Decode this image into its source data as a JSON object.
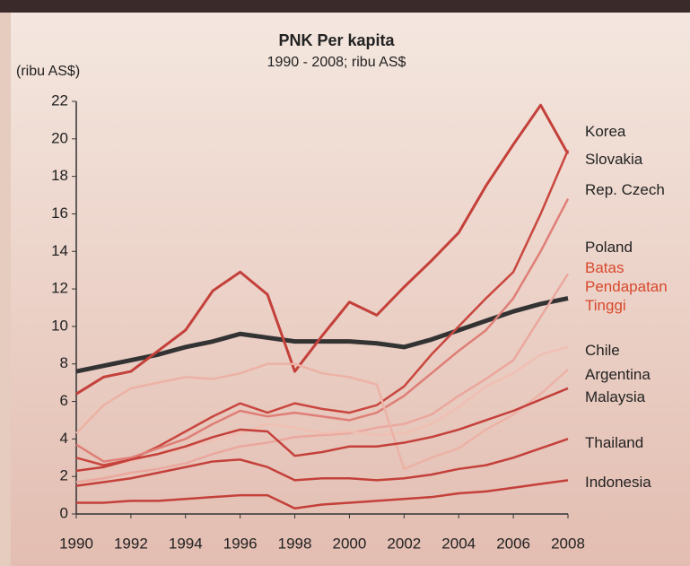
{
  "chart_data": {
    "type": "line",
    "title": "PNK Per kapita",
    "subtitle": "1990 - 2008; ribu AS$",
    "y_label": "(ribu AS$)",
    "x": [
      1990,
      1991,
      1992,
      1993,
      1994,
      1995,
      1996,
      1997,
      1998,
      1999,
      2000,
      2001,
      2002,
      2003,
      2004,
      2005,
      2006,
      2007,
      2008
    ],
    "xlim": [
      1990,
      2008
    ],
    "xticks": [
      1990,
      1992,
      1994,
      1996,
      1998,
      2000,
      2002,
      2004,
      2006,
      2008
    ],
    "ylim": [
      0,
      22
    ],
    "yticks": [
      0,
      2,
      4,
      6,
      8,
      10,
      12,
      14,
      16,
      18,
      20,
      22
    ],
    "grid": false,
    "series": [
      {
        "name": "Korea",
        "color": "#c4403a",
        "width": 3,
        "values": [
          6.4,
          7.3,
          7.6,
          8.7,
          9.8,
          11.9,
          12.9,
          11.7,
          7.6,
          9.5,
          11.3,
          10.6,
          12.1,
          13.5,
          15.0,
          17.5,
          19.7,
          21.8,
          19.2
        ]
      },
      {
        "name": "Slovakia",
        "color": "#c9473f",
        "width": 2.5,
        "values": [
          3.0,
          2.6,
          2.9,
          3.6,
          4.4,
          5.2,
          5.9,
          5.4,
          5.9,
          5.6,
          5.4,
          5.8,
          6.8,
          8.5,
          10.0,
          11.5,
          12.9,
          16.0,
          19.4
        ]
      },
      {
        "name": "Rep. Czech",
        "color": "#df7f77",
        "width": 2.5,
        "values": [
          3.7,
          2.8,
          3.0,
          3.5,
          4.0,
          4.8,
          5.5,
          5.2,
          5.4,
          5.2,
          5.0,
          5.4,
          6.3,
          7.5,
          8.7,
          9.8,
          11.5,
          14.0,
          16.8
        ]
      },
      {
        "name": "Poland",
        "color": "#eaa89e",
        "width": 2.5,
        "values": [
          1.7,
          1.9,
          2.2,
          2.4,
          2.7,
          3.2,
          3.6,
          3.8,
          4.1,
          4.2,
          4.3,
          4.6,
          4.8,
          5.3,
          6.3,
          7.2,
          8.2,
          10.5,
          12.8
        ]
      },
      {
        "name": "Batas Pendapatan Tinggi",
        "color": "#333333",
        "label_color": "#d8482c",
        "width": 5,
        "values": [
          7.6,
          7.9,
          8.2,
          8.5,
          8.9,
          9.2,
          9.6,
          9.4,
          9.2,
          9.2,
          9.2,
          9.1,
          8.9,
          9.3,
          9.8,
          10.3,
          10.8,
          11.2,
          11.5
        ]
      },
      {
        "name": "Chile",
        "color": "#f0bfb3",
        "width": 2.5,
        "values": [
          2.3,
          2.5,
          2.8,
          3.2,
          3.5,
          3.9,
          4.3,
          4.8,
          4.6,
          4.3,
          4.4,
          4.2,
          4.3,
          4.8,
          5.7,
          6.8,
          7.5,
          8.5,
          8.9
        ]
      },
      {
        "name": "Argentina",
        "color": "#ecb2a6",
        "width": 2.5,
        "values": [
          4.3,
          5.8,
          6.7,
          7.0,
          7.3,
          7.2,
          7.5,
          8.0,
          8.0,
          7.5,
          7.3,
          6.9,
          2.4,
          3.0,
          3.5,
          4.5,
          5.3,
          6.4,
          7.7
        ]
      },
      {
        "name": "Malaysia",
        "color": "#c4403a",
        "width": 2.5,
        "values": [
          2.3,
          2.5,
          2.9,
          3.2,
          3.6,
          4.1,
          4.5,
          4.4,
          3.1,
          3.3,
          3.6,
          3.6,
          3.8,
          4.1,
          4.5,
          5.0,
          5.5,
          6.1,
          6.7
        ]
      },
      {
        "name": "Thailand",
        "color": "#c4403a",
        "width": 2.5,
        "values": [
          1.5,
          1.7,
          1.9,
          2.2,
          2.5,
          2.8,
          2.9,
          2.5,
          1.8,
          1.9,
          1.9,
          1.8,
          1.9,
          2.1,
          2.4,
          2.6,
          3.0,
          3.5,
          4.0
        ]
      },
      {
        "name": "Indonesia",
        "color": "#c4403a",
        "width": 2.5,
        "values": [
          0.6,
          0.6,
          0.7,
          0.7,
          0.8,
          0.9,
          1.0,
          1.0,
          0.3,
          0.5,
          0.6,
          0.7,
          0.8,
          0.9,
          1.1,
          1.2,
          1.4,
          1.6,
          1.8
        ]
      }
    ]
  }
}
